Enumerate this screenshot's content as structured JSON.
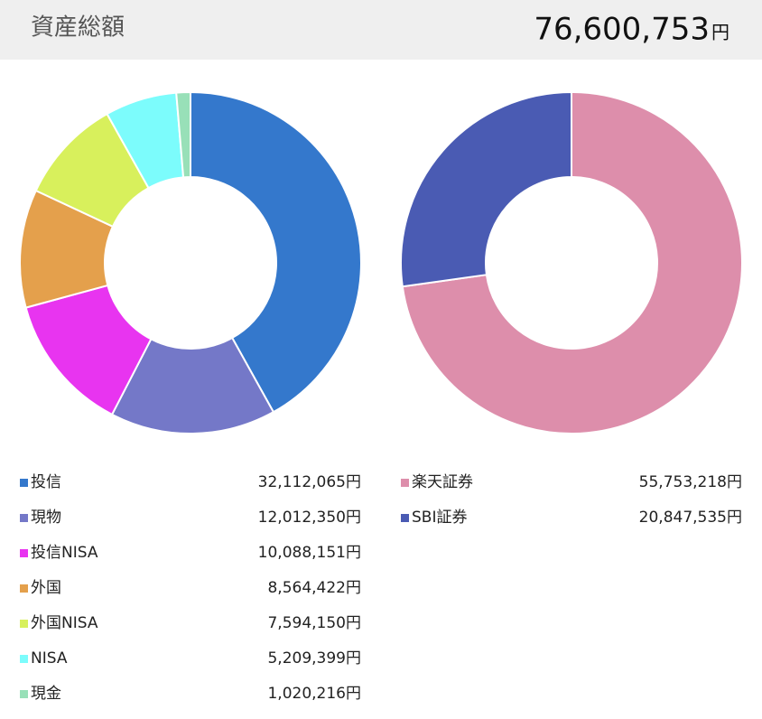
{
  "header": {
    "title": "資産総額",
    "total": "76,600,753",
    "unit": "円"
  },
  "chart_data": [
    {
      "type": "pie",
      "categories": [
        "投信",
        "現物",
        "投信NISA",
        "外国",
        "外国NISA",
        "NISA",
        "現金"
      ],
      "values": [
        32112065,
        12012350,
        10088151,
        8564422,
        7594150,
        5209399,
        1020216
      ],
      "value_labels": [
        "32,112,065円",
        "12,012,350円",
        "10,088,151円",
        "8,564,422円",
        "7,594,150円",
        "5,209,399円",
        "1,020,216円"
      ],
      "colors": [
        "#3478cc",
        "#7478c8",
        "#e834f0",
        "#e4a04c",
        "#d8f05c",
        "#7cfcfc",
        "#98e0b8"
      ]
    },
    {
      "type": "pie",
      "categories": [
        "楽天証券",
        "SBI証券"
      ],
      "values": [
        55753218,
        20847535
      ],
      "value_labels": [
        "55,753,218円",
        "20,847,535円"
      ],
      "colors": [
        "#dd8eab",
        "#4a5bb3"
      ]
    }
  ]
}
